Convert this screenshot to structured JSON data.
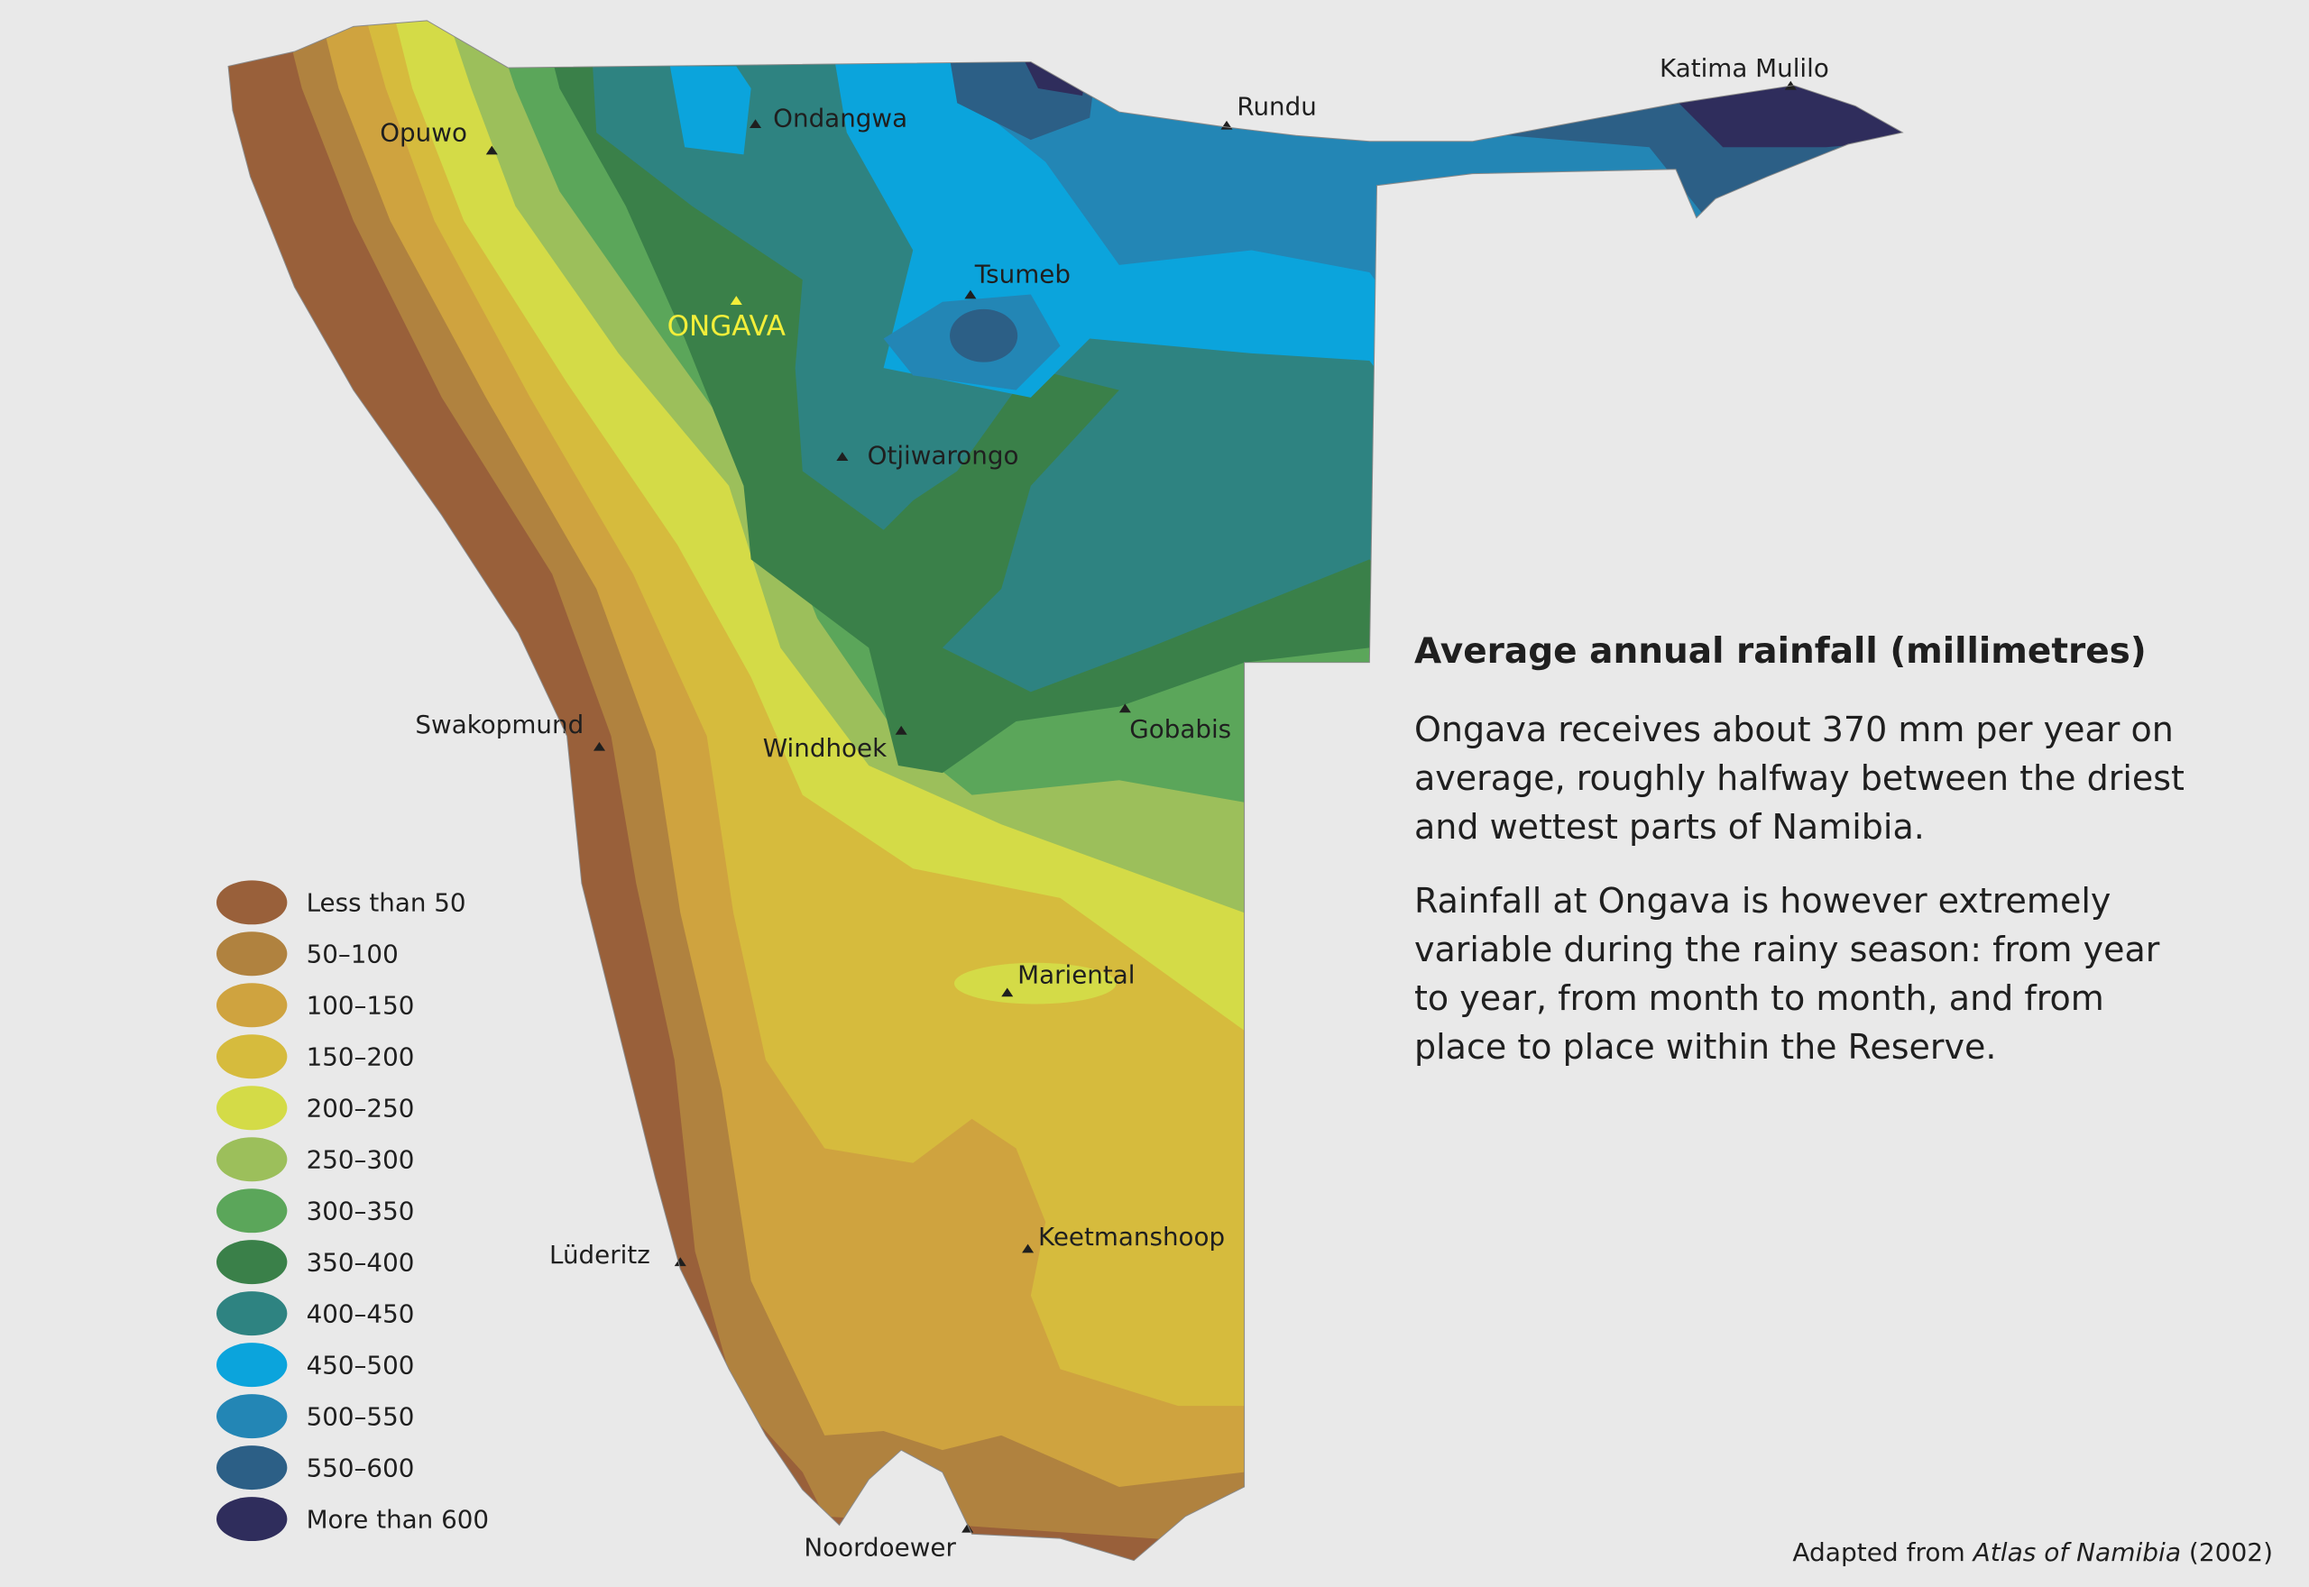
{
  "title": "Average annual rainfall (millimetres)",
  "paragraphs": [
    "Ongava receives about 370 mm per year on average, roughly halfway between the driest and wettest parts of Namibia.",
    "Rainfall at Ongava is however extremely variable during the rainy season: from year to year, from month to month, and from place to place within the Reserve."
  ],
  "legend": [
    {
      "label": "Less than 50",
      "color": "#99603a"
    },
    {
      "label": "50–100",
      "color": "#b0823f"
    },
    {
      "label": "100–150",
      "color": "#cfa33f"
    },
    {
      "label": "150–200",
      "color": "#d6bb3d"
    },
    {
      "label": "200–250",
      "color": "#d4db47"
    },
    {
      "label": "250–300",
      "color": "#9cbf5b"
    },
    {
      "label": "300–350",
      "color": "#5ba65a"
    },
    {
      "label": "350–400",
      "color": "#3a8049"
    },
    {
      "label": "400–450",
      "color": "#2e8381"
    },
    {
      "label": "450–500",
      "color": "#0ba4dc"
    },
    {
      "label": "500–550",
      "color": "#2386b5"
    },
    {
      "label": "550–600",
      "color": "#2c5f86"
    },
    {
      "label": "More than 600",
      "color": "#2f2d5c"
    }
  ],
  "places": [
    "Opuwo",
    "Ondangwa",
    "Rundu",
    "Katima Mulilo",
    "Tsumeb",
    "ONGAVA",
    "Otjiwarongo",
    "Swakopmund",
    "Windhoek",
    "Gobabis",
    "Mariental",
    "Lüderitz",
    "Keetmanshoop",
    "Noordoewer"
  ],
  "credit": {
    "prefix": "Adapted from",
    "source": "Atlas of Namibia",
    "suffix": "(2002)"
  }
}
